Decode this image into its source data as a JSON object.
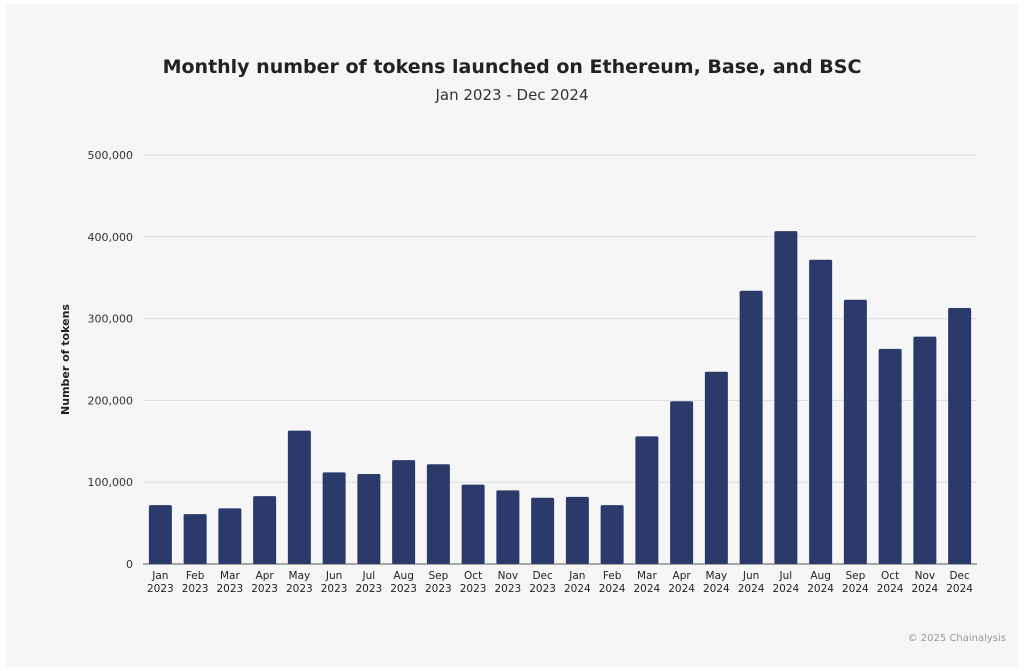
{
  "chart_data": {
    "type": "bar",
    "title": "Monthly number of tokens launched on Ethereum, Base, and BSC",
    "subtitle": "Jan 2023 - Dec 2024",
    "xlabel": "",
    "ylabel": "Number of tokens",
    "ylim": [
      0,
      500000
    ],
    "yticks": [
      "0",
      "100,000",
      "200,000",
      "300,000",
      "400,000",
      "500,000"
    ],
    "grid": true,
    "bar_color": "#2b3a6b",
    "categories": [
      [
        "Jan",
        "2023"
      ],
      [
        "Feb",
        "2023"
      ],
      [
        "Mar",
        "2023"
      ],
      [
        "Apr",
        "2023"
      ],
      [
        "May",
        "2023"
      ],
      [
        "Jun",
        "2023"
      ],
      [
        "Jul",
        "2023"
      ],
      [
        "Aug",
        "2023"
      ],
      [
        "Sep",
        "2023"
      ],
      [
        "Oct",
        "2023"
      ],
      [
        "Nov",
        "2023"
      ],
      [
        "Dec",
        "2023"
      ],
      [
        "Jan",
        "2024"
      ],
      [
        "Feb",
        "2024"
      ],
      [
        "Mar",
        "2024"
      ],
      [
        "Apr",
        "2024"
      ],
      [
        "May",
        "2024"
      ],
      [
        "Jun",
        "2024"
      ],
      [
        "Jul",
        "2024"
      ],
      [
        "Aug",
        "2024"
      ],
      [
        "Sep",
        "2024"
      ],
      [
        "Oct",
        "2024"
      ],
      [
        "Nov",
        "2024"
      ],
      [
        "Dec",
        "2024"
      ]
    ],
    "values": [
      72000,
      61000,
      68000,
      83000,
      163000,
      112000,
      110000,
      127000,
      122000,
      97000,
      90000,
      81000,
      82000,
      72000,
      156000,
      199000,
      235000,
      334000,
      407000,
      372000,
      323000,
      263000,
      278000,
      313000
    ]
  },
  "credit": "© 2025 Chainalysis"
}
